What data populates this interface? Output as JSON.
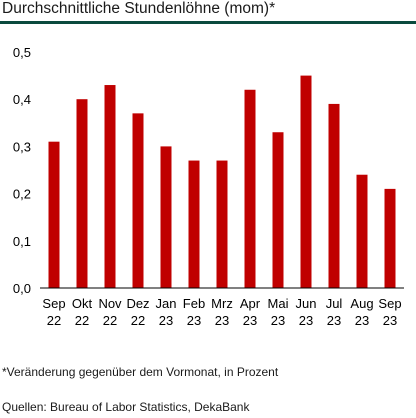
{
  "header": {
    "title": "Durchschnittliche Stundenlöhne (mom)*"
  },
  "chart_data": {
    "type": "bar",
    "title": "Durchschnittliche Stundenlöhne (mom)*",
    "xlabel": "",
    "ylabel": "",
    "ylim": [
      0,
      0.5
    ],
    "yticks": [
      "0,0",
      "0,1",
      "0,2",
      "0,3",
      "0,4",
      "0,5"
    ],
    "grid": false,
    "legend": "none",
    "bar_color": "#c00000",
    "categories": [
      {
        "month": "Sep",
        "year": "22"
      },
      {
        "month": "Okt",
        "year": "22"
      },
      {
        "month": "Nov",
        "year": "22"
      },
      {
        "month": "Dez",
        "year": "22"
      },
      {
        "month": "Jan",
        "year": "23"
      },
      {
        "month": "Feb",
        "year": "23"
      },
      {
        "month": "Mrz",
        "year": "23"
      },
      {
        "month": "Apr",
        "year": "23"
      },
      {
        "month": "Mai",
        "year": "23"
      },
      {
        "month": "Jun",
        "year": "23"
      },
      {
        "month": "Jul",
        "year": "23"
      },
      {
        "month": "Aug",
        "year": "23"
      },
      {
        "month": "Sep",
        "year": "23"
      }
    ],
    "values": [
      0.31,
      0.4,
      0.43,
      0.37,
      0.3,
      0.27,
      0.27,
      0.42,
      0.33,
      0.45,
      0.39,
      0.24,
      0.21
    ]
  },
  "notes": {
    "footnote": "*Veränderung gegenüber dem Vormonat, in Prozent",
    "source": "Quellen: Bureau of Labor Statistics, DekaBank"
  }
}
